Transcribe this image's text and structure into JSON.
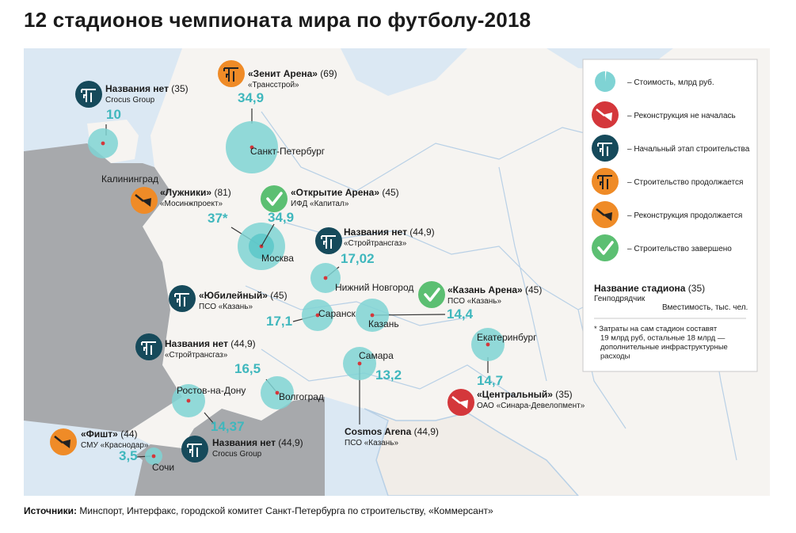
{
  "title": "12 стадионов чемпионата мира по футболу-2018",
  "source": {
    "label": "Источники:",
    "text": " Минспорт, Интерфакс, городской комитет Санкт-Петербурга по строительству, «Коммерсант»"
  },
  "colors": {
    "sea": "#dbe8f3",
    "land": "#f6f4f1",
    "neighbor": "#a7a9ac",
    "border": "#b8d0e6",
    "bubble": "#7fd3d4",
    "value": "#3fb7bd",
    "initial": "#164a5b",
    "progress": "#ef8b27",
    "not_started": "#d4373b",
    "done": "#5cbf72"
  },
  "legend": {
    "items": [
      {
        "status": "cost",
        "label": "– Стоимость, млрд руб."
      },
      {
        "status": "not_started",
        "label": "– Реконструкция не началась"
      },
      {
        "status": "initial",
        "label": "– Начальный этап строительства"
      },
      {
        "status": "construction",
        "label": "– Строительство продолжается"
      },
      {
        "status": "reconstruction",
        "label": "– Реконструкция продолжается"
      },
      {
        "status": "done",
        "label": "– Строительство завершено"
      }
    ],
    "example": {
      "name": "Название стадиона",
      "capacity": "(35)",
      "contractor": "Генподрядчик",
      "capacity_label": "Вместимость, тыс. чел."
    },
    "footnote": [
      "* Затраты на сам стадион составят",
      "19 млрд руб, остальные 18 млрд —",
      "дополнительные инфраструктурные",
      "расходы"
    ]
  },
  "stadiums": [
    {
      "city": "Калининград",
      "cost": 10,
      "cost_label": "10",
      "stadium": "Названия нет",
      "capacity": "(35)",
      "contractor": "Crocus Group",
      "status": "initial"
    },
    {
      "city": "Санкт-Петербург",
      "cost": 34.9,
      "cost_label": "34,9",
      "stadium": "«Зенит Арена»",
      "capacity": "(69)",
      "contractor": "«Трансстрой»",
      "status": "construction"
    },
    {
      "city": "Москва",
      "cost": 37,
      "cost_label": "37*",
      "stadium": "«Лужники»",
      "capacity": "(81)",
      "contractor": "«Мосинжпроект»",
      "status": "reconstruction"
    },
    {
      "city": "Москва",
      "cost": 34.9,
      "cost_label": "34,9",
      "stadium": "«Открытие Арена»",
      "capacity": "(45)",
      "contractor": "ИФД «Капитал»",
      "status": "done"
    },
    {
      "city": "Нижний Новгород",
      "cost": 17.02,
      "cost_label": "17,02",
      "stadium": "Названия нет",
      "capacity": "(44,9)",
      "contractor": "«Стройтрансгаз»",
      "status": "initial"
    },
    {
      "city": "Саранск",
      "cost": 17.1,
      "cost_label": "17,1",
      "stadium": "«Юбилейный»",
      "capacity": "(45)",
      "contractor": "ПСО «Казань»",
      "status": "initial"
    },
    {
      "city": "Казань",
      "cost": 14.4,
      "cost_label": "14,4",
      "stadium": "«Казань Арена»",
      "capacity": "(45)",
      "contractor": "ПСО «Казань»",
      "status": "done"
    },
    {
      "city": "Волгоград",
      "cost": 16.5,
      "cost_label": "16,5",
      "stadium": "Названия нет",
      "capacity": "(44,9)",
      "contractor": "«Стройтрансгаз»",
      "status": "initial"
    },
    {
      "city": "Самара",
      "cost": 13.2,
      "cost_label": "13,2",
      "stadium": "Cosmos Arena",
      "capacity": "(44,9)",
      "contractor": "ПСО «Казань»",
      "status": "none"
    },
    {
      "city": "Екатеринбург",
      "cost": 14.7,
      "cost_label": "14,7",
      "stadium": "«Центральный»",
      "capacity": "(35)",
      "contractor": "ОАО «Синара-Девелопмент»",
      "status": "not_started"
    },
    {
      "city": "Ростов-на-Дону",
      "cost": 14.37,
      "cost_label": "14,37",
      "stadium": "Названия нет",
      "capacity": "(44,9)",
      "contractor": "Crocus Group",
      "status": "initial"
    },
    {
      "city": "Сочи",
      "cost": 3.5,
      "cost_label": "3,5",
      "stadium": "«Фишт»",
      "capacity": "(44)",
      "contractor": "СМУ «Краснодар»",
      "status": "reconstruction"
    }
  ]
}
